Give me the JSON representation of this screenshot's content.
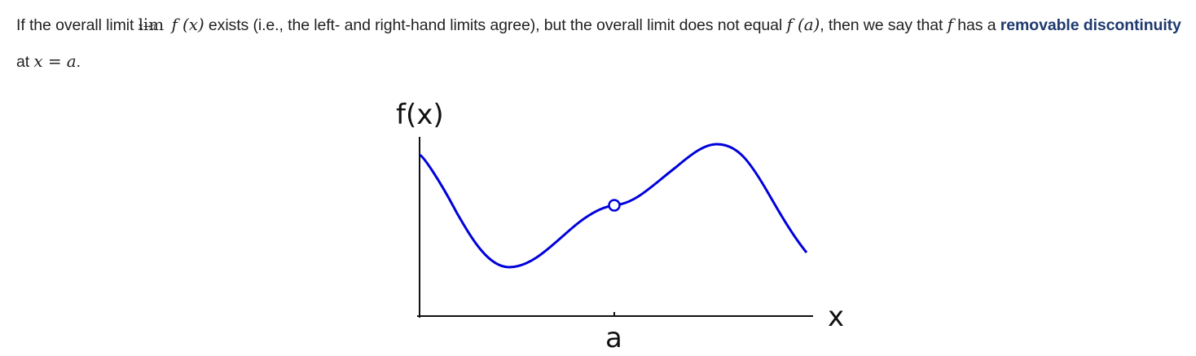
{
  "paragraph": {
    "text_1": "If the overall limit",
    "lim_word": "lim",
    "lim_subscript": "x→a",
    "lim_function": "f (x)",
    "text_2": "exists (i.e., the left- and right-hand limits agree), but the overall limit does not equal",
    "f_of_a": "f (a)",
    "text_3": ", then we say that",
    "f_symbol": "f",
    "text_4": "has a",
    "term": "removable discontinuity",
    "text_5": "at",
    "x_equals_a": "x = a",
    "text_6": "."
  },
  "graph": {
    "y_axis_label": "f(x)",
    "x_axis_label": "x",
    "tick_label": "a",
    "curve_color": "#0000dd",
    "axis_color": "#111111",
    "hole_description_marker": "open-circle"
  }
}
